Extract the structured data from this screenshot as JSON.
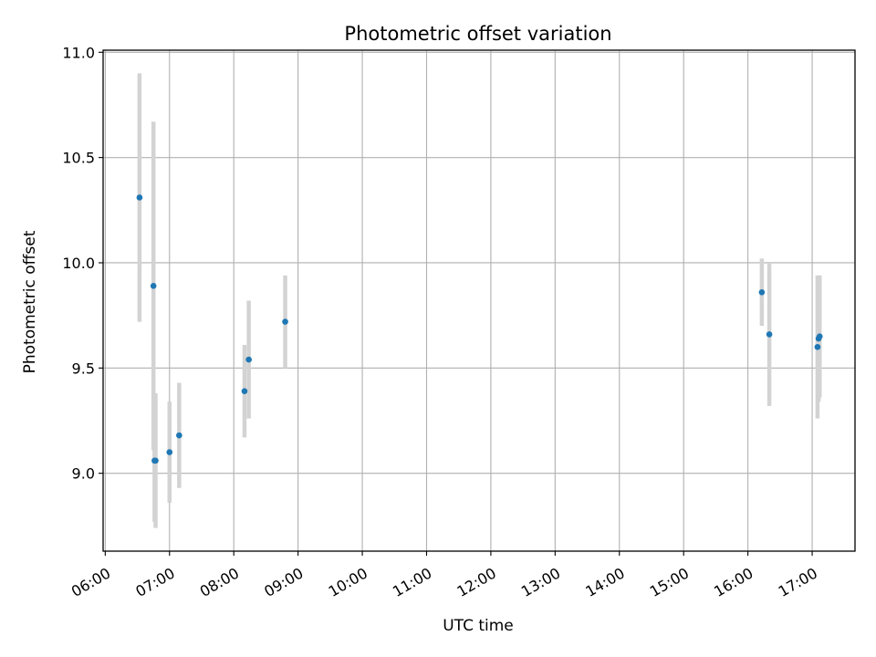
{
  "chart_data": {
    "type": "scatter",
    "title": "Photometric offset variation",
    "xlabel": "UTC time",
    "ylabel": "Photometric offset",
    "x_axis": "time (HH:MM, UTC)",
    "xlim": [
      "05:58",
      "17:40"
    ],
    "ylim": [
      8.63,
      11.01
    ],
    "grid": true,
    "x_ticks": [
      "06:00",
      "07:00",
      "08:00",
      "09:00",
      "10:00",
      "11:00",
      "12:00",
      "13:00",
      "14:00",
      "15:00",
      "16:00",
      "17:00"
    ],
    "y_ticks": [
      "9.0",
      "9.5",
      "10.0",
      "10.5",
      "11.0"
    ],
    "marker_color": "#1f77b4",
    "errorbar_color": "#d3d3d3",
    "points": [
      {
        "x": "06:32",
        "y": 10.31,
        "yerr": 0.59
      },
      {
        "x": "06:45",
        "y": 9.89,
        "yerr": 0.78
      },
      {
        "x": "06:46",
        "y": 9.06,
        "yerr": 0.29
      },
      {
        "x": "06:47",
        "y": 9.06,
        "yerr": 0.32
      },
      {
        "x": "07:00",
        "y": 9.1,
        "yerr": 0.24
      },
      {
        "x": "07:09",
        "y": 9.18,
        "yerr": 0.25
      },
      {
        "x": "08:10",
        "y": 9.39,
        "yerr": 0.22
      },
      {
        "x": "08:14",
        "y": 9.54,
        "yerr": 0.28
      },
      {
        "x": "08:48",
        "y": 9.72,
        "yerr": 0.22
      },
      {
        "x": "16:13",
        "y": 9.86,
        "yerr": 0.16
      },
      {
        "x": "16:20",
        "y": 9.66,
        "yerr": 0.34
      },
      {
        "x": "17:05",
        "y": 9.6,
        "yerr": 0.34
      },
      {
        "x": "17:06",
        "y": 9.64,
        "yerr": 0.3
      },
      {
        "x": "17:07",
        "y": 9.65,
        "yerr": 0.29
      }
    ]
  }
}
